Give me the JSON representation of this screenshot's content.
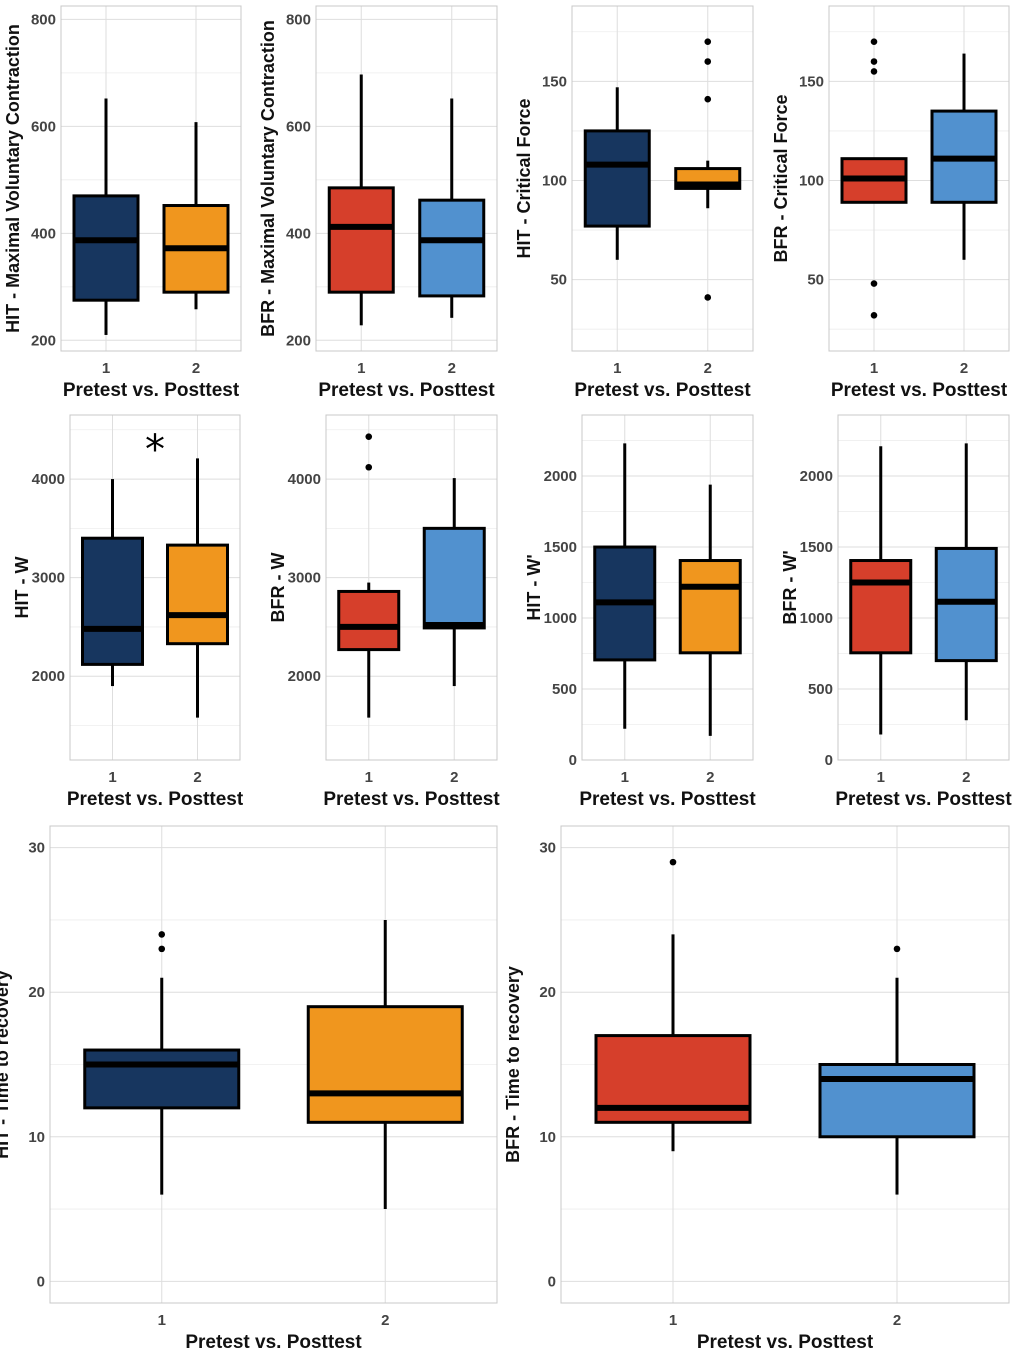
{
  "colors": {
    "hit_pre": "#17365f",
    "hit_post": "#f0961e",
    "bfr_pre": "#d63f2b",
    "bfr_post": "#5191cf"
  },
  "chart_data": [
    {
      "type": "box",
      "xlabel": "Pretest vs. Posttest",
      "ylabel": "HIT - Maximal Voluntary Contraction",
      "categories": [
        "1",
        "2"
      ],
      "ylim": [
        180,
        825
      ],
      "yticks": [
        200,
        400,
        600,
        800
      ],
      "grid": true,
      "series": [
        {
          "name": "1",
          "color": "hit_pre",
          "min": 210,
          "q1": 275,
          "median": 387,
          "q3": 470,
          "max": 652,
          "outliers": []
        },
        {
          "name": "2",
          "color": "hit_post",
          "min": 258,
          "q1": 290,
          "median": 372,
          "q3": 452,
          "max": 608,
          "outliers": []
        }
      ]
    },
    {
      "type": "box",
      "xlabel": "Pretest vs. Posttest",
      "ylabel": "BFR - Maximal Voluntary Contraction",
      "categories": [
        "1",
        "2"
      ],
      "ylim": [
        180,
        825
      ],
      "yticks": [
        200,
        400,
        600,
        800
      ],
      "grid": true,
      "series": [
        {
          "name": "1",
          "color": "bfr_pre",
          "min": 228,
          "q1": 290,
          "median": 412,
          "q3": 485,
          "max": 697,
          "outliers": []
        },
        {
          "name": "2",
          "color": "bfr_post",
          "min": 242,
          "q1": 283,
          "median": 387,
          "q3": 462,
          "max": 652,
          "outliers": []
        }
      ]
    },
    {
      "type": "box",
      "xlabel": "Pretest vs. Posttest",
      "ylabel": "HIT - Critical Force",
      "categories": [
        "1",
        "2"
      ],
      "ylim": [
        14,
        188
      ],
      "yticks": [
        50,
        100,
        150
      ],
      "grid": true,
      "series": [
        {
          "name": "1",
          "color": "hit_pre",
          "min": 60,
          "q1": 77,
          "median": 108,
          "q3": 125,
          "max": 147,
          "outliers": []
        },
        {
          "name": "2",
          "color": "hit_post",
          "min": 86,
          "q1": 96,
          "median": 98,
          "q3": 106,
          "max": 110,
          "outliers": [
            170,
            160,
            141,
            41
          ]
        }
      ]
    },
    {
      "type": "box",
      "xlabel": "Pretest vs. Posttest",
      "ylabel": "BFR - Critical Force",
      "categories": [
        "1",
        "2"
      ],
      "ylim": [
        14,
        188
      ],
      "yticks": [
        50,
        100,
        150
      ],
      "grid": true,
      "series": [
        {
          "name": "1",
          "color": "bfr_pre",
          "min": 89,
          "q1": 89,
          "median": 101,
          "q3": 111,
          "max": 111,
          "outliers": [
            170,
            160,
            155,
            48,
            32
          ]
        },
        {
          "name": "2",
          "color": "bfr_post",
          "min": 60,
          "q1": 89,
          "median": 111,
          "q3": 135,
          "max": 164,
          "outliers": []
        }
      ]
    },
    {
      "type": "box",
      "xlabel": "Pretest vs. Posttest",
      "ylabel": "HIT - W",
      "categories": [
        "1",
        "2"
      ],
      "ylim": [
        1150,
        4650
      ],
      "yticks": [
        2000,
        3000,
        4000
      ],
      "grid": true,
      "annotation": "*",
      "series": [
        {
          "name": "1",
          "color": "hit_pre",
          "min": 1900,
          "q1": 2120,
          "median": 2480,
          "q3": 3400,
          "max": 4000,
          "outliers": []
        },
        {
          "name": "2",
          "color": "hit_post",
          "min": 1580,
          "q1": 2330,
          "median": 2620,
          "q3": 3330,
          "max": 4210,
          "outliers": []
        }
      ]
    },
    {
      "type": "box",
      "xlabel": "Pretest vs. Posttest",
      "ylabel": "BFR - W",
      "categories": [
        "1",
        "2"
      ],
      "ylim": [
        1150,
        4650
      ],
      "yticks": [
        2000,
        3000,
        4000
      ],
      "grid": true,
      "series": [
        {
          "name": "1",
          "color": "bfr_pre",
          "min": 1580,
          "q1": 2270,
          "median": 2500,
          "q3": 2860,
          "max": 2950,
          "outliers": [
            4430,
            4120
          ]
        },
        {
          "name": "2",
          "color": "bfr_post",
          "min": 1900,
          "q1": 2490,
          "median": 2520,
          "q3": 3500,
          "max": 4010,
          "outliers": []
        }
      ]
    },
    {
      "type": "box",
      "xlabel": "Pretest vs. Posttest",
      "ylabel": "HIT - W'",
      "categories": [
        "1",
        "2"
      ],
      "ylim": [
        0,
        2430
      ],
      "yticks": [
        0,
        500,
        1000,
        1500,
        2000
      ],
      "grid": true,
      "series": [
        {
          "name": "1",
          "color": "hit_pre",
          "min": 220,
          "q1": 705,
          "median": 1110,
          "q3": 1500,
          "max": 2230,
          "outliers": []
        },
        {
          "name": "2",
          "color": "hit_post",
          "min": 170,
          "q1": 755,
          "median": 1220,
          "q3": 1405,
          "max": 1940,
          "outliers": []
        }
      ]
    },
    {
      "type": "box",
      "xlabel": "Pretest vs. Posttest",
      "ylabel": "BFR - W'",
      "categories": [
        "1",
        "2"
      ],
      "ylim": [
        0,
        2430
      ],
      "yticks": [
        0,
        500,
        1000,
        1500,
        2000
      ],
      "grid": true,
      "series": [
        {
          "name": "1",
          "color": "bfr_pre",
          "min": 180,
          "q1": 755,
          "median": 1250,
          "q3": 1405,
          "max": 2210,
          "outliers": []
        },
        {
          "name": "2",
          "color": "bfr_post",
          "min": 280,
          "q1": 700,
          "median": 1115,
          "q3": 1490,
          "max": 2230,
          "outliers": []
        }
      ]
    },
    {
      "type": "box",
      "xlabel": "Pretest vs. Posttest",
      "ylabel": "HIT - Time to recovery",
      "categories": [
        "1",
        "2"
      ],
      "ylim": [
        -1.5,
        31.5
      ],
      "yticks": [
        0,
        10,
        20,
        30
      ],
      "grid": true,
      "series": [
        {
          "name": "1",
          "color": "hit_pre",
          "min": 6,
          "q1": 12,
          "median": 15,
          "q3": 16,
          "max": 21,
          "outliers": [
            24,
            23
          ]
        },
        {
          "name": "2",
          "color": "hit_post",
          "min": 5,
          "q1": 11,
          "median": 13,
          "q3": 19,
          "max": 25,
          "outliers": []
        }
      ]
    },
    {
      "type": "box",
      "xlabel": "Pretest vs. Posttest",
      "ylabel": "BFR - Time to recovery",
      "categories": [
        "1",
        "2"
      ],
      "ylim": [
        -1.5,
        31.5
      ],
      "yticks": [
        0,
        10,
        20,
        30
      ],
      "grid": true,
      "series": [
        {
          "name": "1",
          "color": "bfr_pre",
          "min": 9,
          "q1": 11,
          "median": 12,
          "q3": 17,
          "max": 24,
          "outliers": [
            29
          ]
        },
        {
          "name": "2",
          "color": "bfr_post",
          "min": 6,
          "q1": 10,
          "median": 14,
          "q3": 15,
          "max": 21,
          "outliers": [
            23
          ]
        }
      ]
    }
  ]
}
